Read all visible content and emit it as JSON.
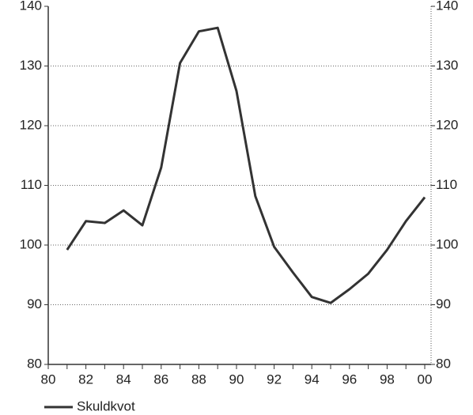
{
  "chart_data": {
    "type": "line",
    "categories": [
      "80",
      null,
      "82",
      null,
      "84",
      null,
      "86",
      null,
      "88",
      null,
      "90",
      null,
      "92",
      null,
      "94",
      null,
      "96",
      null,
      "98",
      null,
      "00"
    ],
    "series": [
      {
        "name": "Skuldkvot",
        "color": "#333333",
        "values": [
          null,
          99.2,
          104.0,
          103.7,
          105.8,
          103.3,
          113.0,
          130.5,
          135.8,
          136.4,
          125.8,
          108.2,
          99.7,
          95.4,
          91.3,
          90.3,
          92.6,
          95.2,
          99.2,
          104.0,
          108.0
        ]
      }
    ],
    "ylim": [
      80,
      140
    ],
    "yticks": [
      80,
      90,
      100,
      110,
      120,
      130,
      140
    ],
    "y2lim": [
      80,
      140
    ],
    "y2ticks": [
      80,
      90,
      100,
      110,
      120,
      130,
      140
    ],
    "grid": true,
    "legend": "bottom-left"
  }
}
